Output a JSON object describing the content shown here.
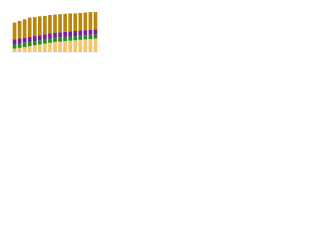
{
  "chart_data": {
    "type": "bar",
    "stacked": true,
    "categories": [
      null,
      null,
      null,
      null,
      null,
      null,
      null,
      null,
      null,
      null,
      null,
      null,
      null,
      null,
      null,
      null,
      null
    ],
    "series": [
      {
        "name": null,
        "color": "#f5c56a",
        "values": [
          8,
          10,
          12,
          14,
          16,
          18,
          20,
          22,
          24,
          25,
          26,
          27,
          28,
          29,
          30,
          31,
          32
        ]
      },
      {
        "name": null,
        "color": "#1f8f1f",
        "values": [
          10,
          10,
          10,
          10,
          10,
          10,
          10,
          10,
          10,
          10,
          10,
          10,
          10,
          10,
          10,
          10,
          10
        ]
      },
      {
        "name": null,
        "color": "#7a1f9a",
        "values": [
          12,
          12,
          12,
          12,
          12,
          12,
          12,
          12,
          12,
          12,
          12,
          12,
          12,
          12,
          12,
          12,
          12
        ]
      },
      {
        "name": null,
        "color": "#b8860b",
        "values": [
          40,
          42,
          44,
          46,
          45,
          45,
          44,
          44,
          43,
          43,
          43,
          43,
          42,
          42,
          42,
          42,
          41
        ]
      }
    ],
    "ylim": [
      0,
      100
    ]
  }
}
